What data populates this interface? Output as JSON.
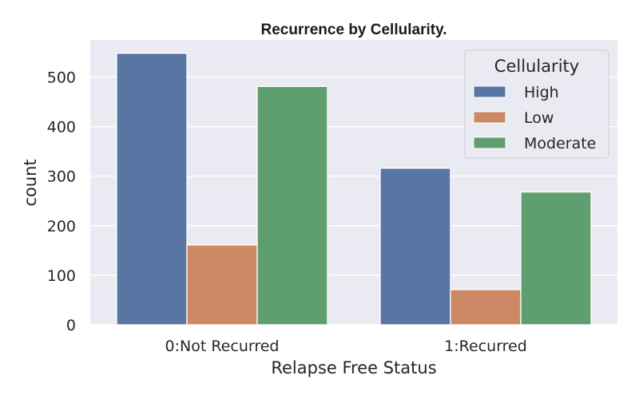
{
  "chart_data": {
    "type": "bar",
    "title": "Recurrence by Cellularity.",
    "xlabel": "Relapse Free Status",
    "ylabel": "count",
    "categories": [
      "0:Not Recurred",
      "1:Recurred"
    ],
    "series": [
      {
        "name": "High",
        "values": [
          548,
          316
        ],
        "color": "#5975a4"
      },
      {
        "name": "Low",
        "values": [
          161,
          71
        ],
        "color": "#cc8963"
      },
      {
        "name": "Moderate",
        "values": [
          481,
          268
        ],
        "color": "#5f9e6e"
      }
    ],
    "yticks": [
      0,
      100,
      200,
      300,
      400,
      500
    ],
    "ylim": [
      0,
      575
    ],
    "grid": true,
    "legend": {
      "title": "Cellularity",
      "placement": "top-right"
    },
    "background_color": "#eaeaf2"
  }
}
